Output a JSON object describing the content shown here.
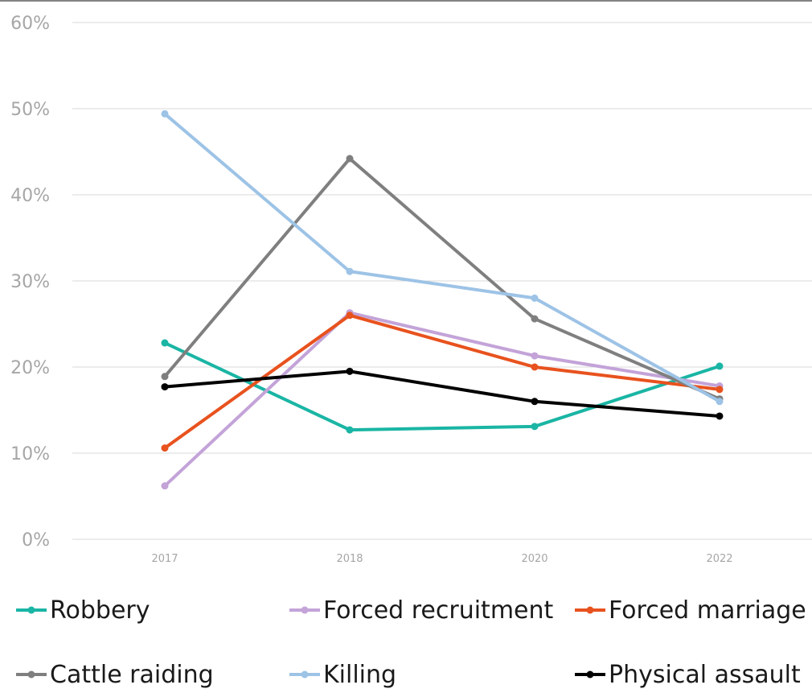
{
  "chart_data": {
    "type": "line",
    "title": "",
    "xlabel": "",
    "ylabel": "",
    "categories": [
      "2017",
      "2018",
      "2020",
      "2022"
    ],
    "ylim": [
      0,
      60
    ],
    "yticks": [
      "0%",
      "10%",
      "20%",
      "30%",
      "40%",
      "50%",
      "60%"
    ],
    "grid": true,
    "legend_position": "bottom",
    "series": [
      {
        "name": "Robbery",
        "color": "#1ab5a4",
        "values": [
          22.8,
          12.7,
          13.1,
          20.1
        ]
      },
      {
        "name": "Forced recruitment",
        "color": "#c3a3d8",
        "values": [
          6.2,
          26.3,
          21.3,
          17.8
        ]
      },
      {
        "name": "Forced marriage",
        "color": "#e8521e",
        "values": [
          10.6,
          26.0,
          20.0,
          17.4
        ]
      },
      {
        "name": "Cattle raiding",
        "color": "#7f7f7f",
        "values": [
          18.9,
          44.2,
          25.6,
          16.3
        ]
      },
      {
        "name": "Killing",
        "color": "#9dc3e6",
        "values": [
          49.4,
          31.1,
          28.0,
          16.0
        ]
      },
      {
        "name": "Physical assault",
        "color": "#000000",
        "values": [
          17.7,
          19.5,
          16.0,
          14.3
        ]
      }
    ]
  }
}
